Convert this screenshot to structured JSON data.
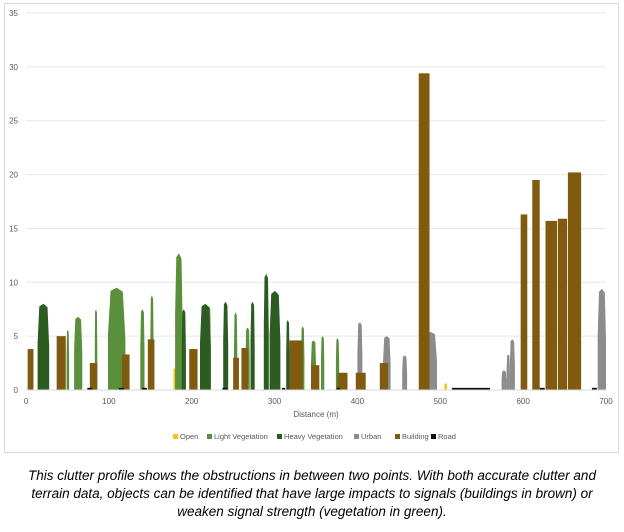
{
  "chart_data": {
    "type": "area",
    "title": "",
    "xlabel": "Distance (m)",
    "ylabel": "",
    "xlim": [
      0,
      700
    ],
    "ylim": [
      0,
      35
    ],
    "x_ticks": [
      0,
      100,
      200,
      300,
      400,
      500,
      600,
      700
    ],
    "y_ticks": [
      0,
      5,
      10,
      15,
      20,
      25,
      30,
      35
    ],
    "grid": "horizontal",
    "legend_position": "bottom",
    "colors": {
      "Open": "#f2c414",
      "Light Vegetation": "#5a8f3c",
      "Heavy Vegetation": "#2d5c22",
      "Urban": "#8c8c8c",
      "Building": "#7f5a0f",
      "Road": "#0d0d0d"
    },
    "series": [
      {
        "name": "Open",
        "segments": [
          [
            4,
            7,
            1.5
          ],
          [
            178,
            181,
            2.0
          ],
          [
            505,
            508,
            0.6
          ],
          [
            576,
            580,
            0.5
          ]
        ]
      },
      {
        "name": "Light Vegetation",
        "segments": [
          [
            49,
            52,
            5.6
          ],
          [
            58,
            68,
            6.8
          ],
          [
            83,
            86,
            7.5
          ],
          [
            99,
            120,
            9.5
          ],
          [
            138,
            143,
            7.5
          ],
          [
            150,
            154,
            8.8
          ],
          [
            180,
            189,
            12.7
          ],
          [
            219,
            223,
            7.8
          ],
          [
            251,
            255,
            7.2
          ],
          [
            265,
            270,
            5.8
          ],
          [
            332,
            336,
            5.9
          ],
          [
            344,
            350,
            4.6
          ],
          [
            356,
            360,
            5.0
          ],
          [
            374,
            378,
            4.8
          ]
        ]
      },
      {
        "name": "Heavy Vegetation",
        "segments": [
          [
            14,
            28,
            8.0
          ],
          [
            188,
            193,
            7.5
          ],
          [
            210,
            223,
            8.0
          ],
          [
            238,
            244,
            8.2
          ],
          [
            271,
            276,
            8.2
          ],
          [
            287,
            293,
            10.8
          ],
          [
            294,
            307,
            9.2
          ],
          [
            314,
            318,
            6.5
          ]
        ]
      },
      {
        "name": "Urban",
        "segments": [
          [
            400,
            406,
            6.3
          ],
          [
            431,
            440,
            5.0
          ],
          [
            454,
            460,
            3.2
          ],
          [
            480,
            496,
            5.4
          ],
          [
            574,
            580,
            1.8
          ],
          [
            580,
            584,
            3.3
          ],
          [
            584,
            590,
            4.7
          ],
          [
            630,
            634,
            9.0
          ],
          [
            660,
            664,
            7.0
          ],
          [
            690,
            700,
            9.4
          ]
        ]
      },
      {
        "name": "Building",
        "segments": [
          [
            2,
            9,
            3.8
          ],
          [
            37,
            48,
            5.0
          ],
          [
            77,
            86,
            2.5
          ],
          [
            116,
            125,
            3.3
          ],
          [
            147,
            155,
            4.7
          ],
          [
            197,
            207,
            3.8
          ],
          [
            250,
            257,
            3.0
          ],
          [
            260,
            268,
            3.9
          ],
          [
            318,
            334,
            4.6
          ],
          [
            344,
            354,
            2.3
          ],
          [
            376,
            388,
            1.6
          ],
          [
            398,
            410,
            1.6
          ],
          [
            427,
            437,
            2.5
          ],
          [
            474,
            487,
            29.4
          ],
          [
            597,
            605,
            16.3
          ],
          [
            611,
            620,
            19.5
          ],
          [
            627,
            641,
            15.7
          ],
          [
            642,
            653,
            15.9
          ],
          [
            654,
            670,
            20.2
          ]
        ]
      },
      {
        "name": "Road",
        "segments": [
          [
            74,
            80,
            0.2
          ],
          [
            112,
            118,
            0.2
          ],
          [
            140,
            146,
            0.2
          ],
          [
            237,
            243,
            0.2
          ],
          [
            309,
            313,
            0.2
          ],
          [
            375,
            379,
            0.2
          ],
          [
            514,
            560,
            0.2
          ],
          [
            620,
            626,
            0.2
          ],
          [
            683,
            689,
            0.2
          ]
        ]
      }
    ]
  },
  "caption": "This clutter profile shows the obstructions in between two points. With both accurate clutter and terrain data, objects can be identified that have large impacts to signals (buildings in brown) or weaken signal strength (vegetation in green)."
}
